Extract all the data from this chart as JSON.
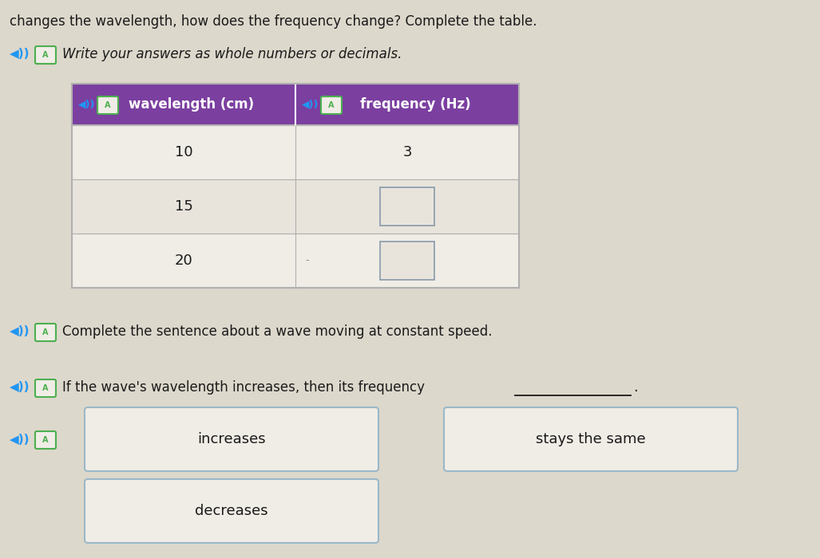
{
  "background_color": "#ddd8cc",
  "top_text": "changes the wavelength, how does the frequency change? Complete the table.",
  "instruction_text": "Write your answers as whole numbers or decimals.",
  "table_header_bg": "#7b3fa0",
  "table_header_text_color": "#ffffff",
  "table_col1_header": "wavelength (cm)",
  "table_col2_header": "frequency (Hz)",
  "table_rows": [
    {
      "col1": "10",
      "col2": "3",
      "has_box": false
    },
    {
      "col1": "15",
      "col2": "",
      "has_box": true
    },
    {
      "col1": "20",
      "col2": "",
      "has_box": true
    }
  ],
  "table_border_color": "#b0b0b0",
  "table_row_bg_light": "#e8e4dc",
  "table_row_bg_white": "#f0ede6",
  "sentence_label": "Complete the sentence about a wave moving at constant speed.",
  "fill_sentence": "If the wave's wavelength increases, then its frequency",
  "button_texts": [
    "increases",
    "stays the same",
    "decreases"
  ],
  "button_bg": "#f0ede6",
  "button_border": "#9ab8c8",
  "icon_color_blue": "#2196F3",
  "icon_color_green": "#4caf50",
  "text_color": "#1a1a1a",
  "top_text_color": "#1a1a1a"
}
